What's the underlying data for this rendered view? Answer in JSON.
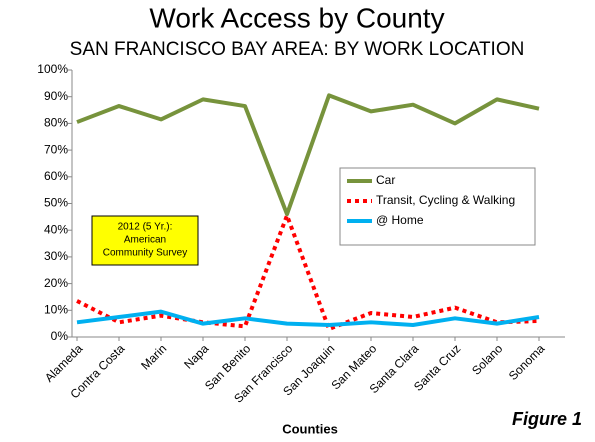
{
  "chart_data": {
    "type": "line",
    "title": "Work Access by County",
    "subtitle": "SAN FRANCISCO BAY AREA: BY WORK LOCATION",
    "x_label": "Counties",
    "annotation": [
      "2012 (5 Yr.):",
      "American",
      "Community Survey"
    ],
    "figure_label": "Figure 1",
    "categories": [
      "Alameda",
      "Contra Costa",
      "Marin",
      "Napa",
      "San Benito",
      "San Francisco",
      "San Joaquin",
      "San Mateo",
      "Santa Clara",
      "Santa Cruz",
      "Solano",
      "Sonoma"
    ],
    "series": [
      {
        "name": "Car",
        "color": "#77933c",
        "dash": false,
        "values": [
          80.5,
          86.5,
          81.5,
          89,
          86.5,
          46,
          90.5,
          84.5,
          87,
          80,
          89,
          85.5
        ]
      },
      {
        "name": "Transit, Cycling & Walking",
        "color": "#ff0000",
        "dash": true,
        "values": [
          13.5,
          5.5,
          8,
          5.5,
          4,
          45.5,
          3,
          9,
          7.5,
          11,
          5.5,
          6
        ]
      },
      {
        "name": "@ Home",
        "color": "#00b0f0",
        "dash": false,
        "values": [
          5.5,
          7.5,
          9.5,
          5,
          7,
          5,
          4.5,
          5.5,
          4.5,
          7,
          5,
          7.5
        ]
      }
    ],
    "ylim": [
      0,
      100
    ],
    "yticks": [
      {
        "value": 0,
        "label": "0%"
      },
      {
        "value": 10,
        "label": "10%"
      },
      {
        "value": 20,
        "label": "20%"
      },
      {
        "value": 30,
        "label": "30%"
      },
      {
        "value": 40,
        "label": "40%"
      },
      {
        "value": 50,
        "label": "50%"
      },
      {
        "value": 60,
        "label": "60%"
      },
      {
        "value": 70,
        "label": "70%"
      },
      {
        "value": 80,
        "label": "80%"
      },
      {
        "value": 90,
        "label": "90%"
      },
      {
        "value": 100,
        "label": "100%"
      }
    ],
    "grid": false,
    "legend": "right"
  }
}
